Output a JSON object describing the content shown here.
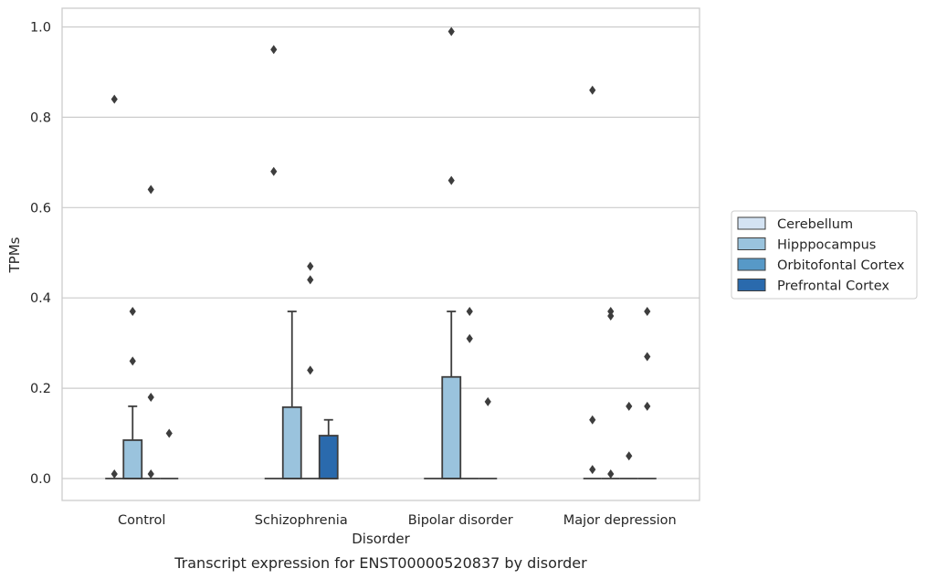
{
  "chart_data": {
    "type": "box",
    "caption": "Transcript expression for ENST00000520837 by disorder",
    "xlabel": "Disorder",
    "ylabel": "TPMs",
    "ylim": [
      -0.048,
      1.04
    ],
    "yticks": [
      0.0,
      0.2,
      0.4,
      0.6,
      0.8,
      1.0
    ],
    "ytick_labels": [
      "0.0",
      "0.2",
      "0.4",
      "0.6",
      "0.8",
      "1.0"
    ],
    "grid": "horizontal",
    "legend_position": "right",
    "categories": [
      "Control",
      "Schizophrenia",
      "Bipolar disorder",
      "Major depression"
    ],
    "series": [
      {
        "name": "Cerebellum",
        "color": "#d4e3f3",
        "boxes": [
          {
            "category": "Control",
            "q1": 0,
            "median": 0,
            "q3": 0,
            "whisker_low": 0,
            "whisker_high": 0,
            "outliers": [
              0.01,
              0.84
            ]
          },
          {
            "category": "Schizophrenia",
            "q1": 0,
            "median": 0,
            "q3": 0,
            "whisker_low": 0,
            "whisker_high": 0,
            "outliers": [
              0.68,
              0.95
            ]
          },
          {
            "category": "Bipolar disorder",
            "q1": 0,
            "median": 0,
            "q3": 0,
            "whisker_low": 0,
            "whisker_high": 0,
            "outliers": []
          },
          {
            "category": "Major depression",
            "q1": 0,
            "median": 0,
            "q3": 0,
            "whisker_low": 0,
            "whisker_high": 0,
            "outliers": [
              0.02,
              0.13,
              0.86
            ]
          }
        ]
      },
      {
        "name": "Hipppocampus",
        "color": "#9ac3dd",
        "boxes": [
          {
            "category": "Control",
            "q1": 0,
            "median": 0,
            "q3": 0.085,
            "whisker_low": 0,
            "whisker_high": 0.16,
            "outliers": [
              0.26,
              0.37
            ]
          },
          {
            "category": "Schizophrenia",
            "q1": 0,
            "median": 0,
            "q3": 0.158,
            "whisker_low": 0,
            "whisker_high": 0.37,
            "outliers": []
          },
          {
            "category": "Bipolar disorder",
            "q1": 0,
            "median": 0,
            "q3": 0.225,
            "whisker_low": 0,
            "whisker_high": 0.37,
            "outliers": [
              0.66,
              0.99
            ]
          },
          {
            "category": "Major depression",
            "q1": 0,
            "median": 0,
            "q3": 0,
            "whisker_low": 0,
            "whisker_high": 0,
            "outliers": [
              0.01,
              0.36,
              0.37
            ]
          }
        ]
      },
      {
        "name": "Orbitofontal Cortex",
        "color": "#5799c7",
        "boxes": [
          {
            "category": "Control",
            "q1": 0,
            "median": 0,
            "q3": 0,
            "whisker_low": 0,
            "whisker_high": 0,
            "outliers": [
              0.01,
              0.18,
              0.64
            ]
          },
          {
            "category": "Schizophrenia",
            "q1": 0,
            "median": 0,
            "q3": 0,
            "whisker_low": 0,
            "whisker_high": 0,
            "outliers": [
              0.24,
              0.44,
              0.47
            ]
          },
          {
            "category": "Bipolar disorder",
            "q1": 0,
            "median": 0,
            "q3": 0,
            "whisker_low": 0,
            "whisker_high": 0,
            "outliers": [
              0.31,
              0.37
            ]
          },
          {
            "category": "Major depression",
            "q1": 0,
            "median": 0,
            "q3": 0,
            "whisker_low": 0,
            "whisker_high": 0,
            "outliers": [
              0.05,
              0.16
            ]
          }
        ]
      },
      {
        "name": "Prefrontal Cortex",
        "color": "#2a6aad",
        "boxes": [
          {
            "category": "Control",
            "q1": 0,
            "median": 0,
            "q3": 0,
            "whisker_low": 0,
            "whisker_high": 0,
            "outliers": [
              0.1
            ]
          },
          {
            "category": "Schizophrenia",
            "q1": 0,
            "median": 0,
            "q3": 0.095,
            "whisker_low": 0,
            "whisker_high": 0.13,
            "outliers": []
          },
          {
            "category": "Bipolar disorder",
            "q1": 0,
            "median": 0,
            "q3": 0,
            "whisker_low": 0,
            "whisker_high": 0,
            "outliers": [
              0.17
            ]
          },
          {
            "category": "Major depression",
            "q1": 0,
            "median": 0,
            "q3": 0,
            "whisker_low": 0,
            "whisker_high": 0,
            "outliers": [
              0.16,
              0.27,
              0.37
            ]
          }
        ]
      }
    ]
  }
}
